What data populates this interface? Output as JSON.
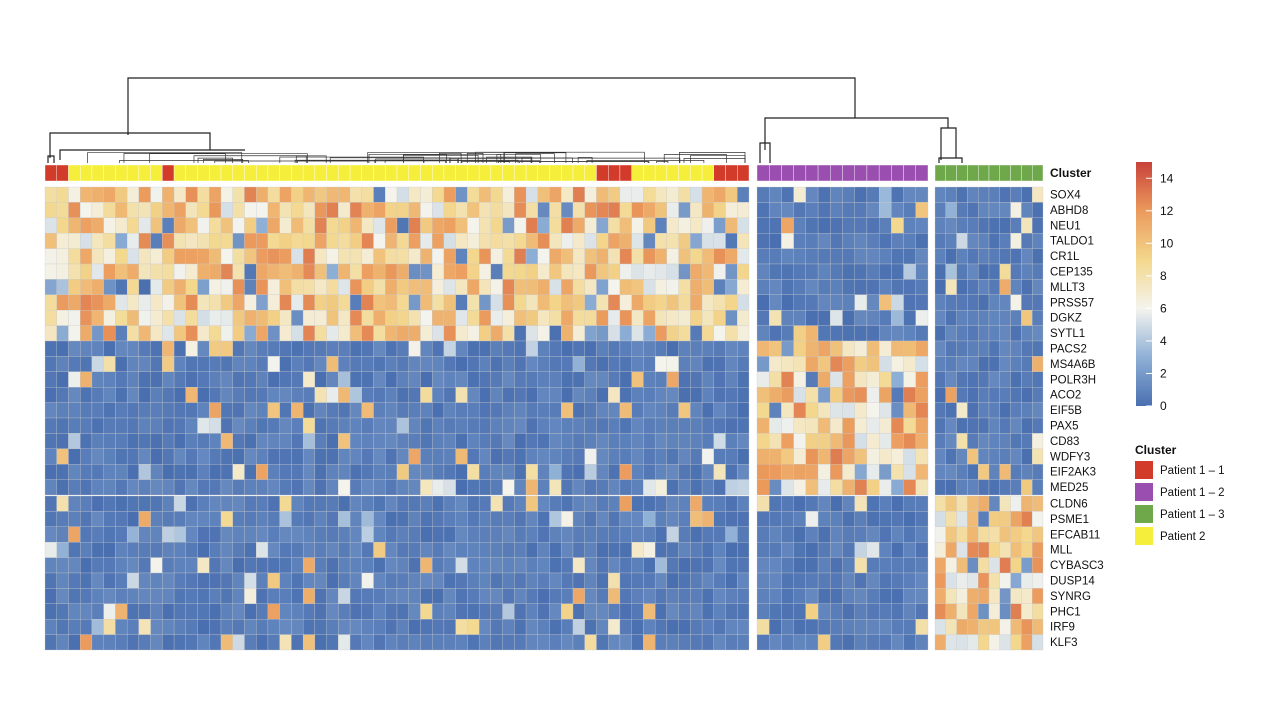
{
  "chart_data": {
    "type": "heatmap",
    "title": "",
    "annotation_track": {
      "label": "Cluster",
      "legend_title": "Cluster",
      "legend_items": [
        {
          "label": "Patient 1 – 1",
          "color": "#d23a2a"
        },
        {
          "label": "Patient 1 – 2",
          "color": "#9a4fb0"
        },
        {
          "label": "Patient 1 – 3",
          "color": "#6ea84a"
        },
        {
          "label": "Patient 2",
          "color": "#f5ee3a"
        }
      ]
    },
    "column_groups": [
      {
        "cluster": "Patient 1 – 1 / Patient 2 (mixed)",
        "n_columns": 60
      },
      {
        "cluster": "Patient 1 – 2",
        "n_columns": 14
      },
      {
        "cluster": "Patient 1 – 3",
        "n_columns": 10
      }
    ],
    "row_blocks": [
      {
        "genes": [
          "SOX4",
          "ABHD8",
          "NEU1",
          "TALDO1",
          "CR1L",
          "CEP135",
          "MLLT3",
          "PRSS57",
          "DGKZ",
          "SYTL1"
        ],
        "high_in_group": 0
      },
      {
        "genes": [
          "PACS2",
          "MS4A6B",
          "POLR3H",
          "ACO2",
          "EIF5B",
          "PAX5",
          "CD83",
          "WDFY3",
          "EIF2AK3",
          "MED25"
        ],
        "high_in_group": 1
      },
      {
        "genes": [
          "CLDN6",
          "PSME1",
          "EFCAB11",
          "MLL",
          "CYBASC3",
          "DUSP14",
          "SYNRG",
          "PHC1",
          "IRF9",
          "KLF3"
        ],
        "high_in_group": 2
      }
    ],
    "color_scale": {
      "min": 0,
      "max": 15,
      "ticks": [
        0,
        2,
        4,
        6,
        8,
        10,
        12,
        14
      ],
      "stops": [
        {
          "value": 0,
          "color": "#4a6fb0"
        },
        {
          "value": 3,
          "color": "#8fb0d6"
        },
        {
          "value": 6,
          "color": "#f4f4ee"
        },
        {
          "value": 9,
          "color": "#f3d78c"
        },
        {
          "value": 12,
          "color": "#eb9a5c"
        },
        {
          "value": 15,
          "color": "#c8423a"
        }
      ]
    },
    "cluster_legend_title": "Cluster"
  }
}
